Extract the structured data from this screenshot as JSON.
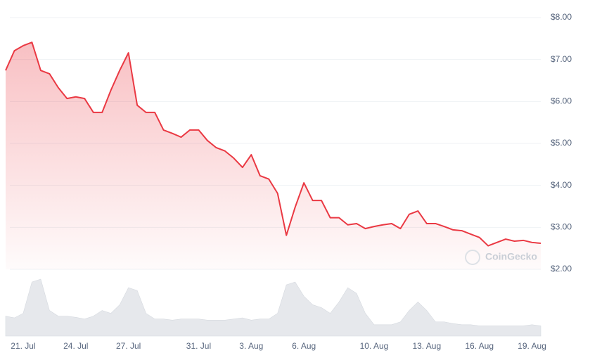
{
  "watermark": "CoinGecko",
  "chart_data": [
    {
      "type": "line",
      "color": "#ea3943",
      "grid": true,
      "categories": [
        null,
        null,
        "21. Jul",
        null,
        null,
        null,
        null,
        null,
        "24. Jul",
        null,
        null,
        null,
        null,
        null,
        "27. Jul",
        null,
        null,
        null,
        null,
        null,
        null,
        null,
        "31. Jul",
        null,
        null,
        null,
        null,
        null,
        "3. Aug",
        null,
        null,
        null,
        null,
        null,
        "6. Aug",
        null,
        null,
        null,
        null,
        null,
        null,
        null,
        "10. Aug",
        null,
        null,
        null,
        null,
        null,
        "13. Aug",
        null,
        null,
        null,
        null,
        null,
        "16. Aug",
        null,
        null,
        null,
        null,
        null,
        "19. Aug",
        null
      ],
      "values": [
        6.74,
        7.21,
        7.33,
        7.41,
        6.74,
        6.66,
        6.33,
        6.07,
        6.11,
        6.07,
        5.74,
        5.74,
        6.27,
        6.74,
        7.16,
        5.91,
        5.74,
        5.74,
        5.32,
        5.24,
        5.15,
        5.32,
        5.32,
        5.07,
        4.9,
        4.82,
        4.65,
        4.43,
        4.73,
        4.23,
        4.15,
        3.81,
        2.81,
        3.48,
        4.06,
        3.64,
        3.64,
        3.23,
        3.23,
        3.06,
        3.09,
        2.97,
        3.02,
        3.06,
        3.09,
        2.97,
        3.31,
        3.39,
        3.09,
        3.09,
        3.02,
        2.94,
        2.92,
        2.84,
        2.76,
        2.56,
        2.64,
        2.72,
        2.67,
        2.69,
        2.64,
        2.62
      ],
      "ylim": [
        2,
        8
      ],
      "yticks": [
        {
          "value": 2,
          "label": "$2.00"
        },
        {
          "value": 3,
          "label": "$3.00"
        },
        {
          "value": 4,
          "label": "$4.00"
        },
        {
          "value": 5,
          "label": "$5.00"
        },
        {
          "value": 6,
          "label": "$6.00"
        },
        {
          "value": 7,
          "label": "$7.00"
        },
        {
          "value": 8,
          "label": "$8.00"
        }
      ]
    },
    {
      "type": "area",
      "color": "#e6e8ec",
      "values": [
        35,
        32,
        40,
        95,
        100,
        45,
        35,
        35,
        33,
        30,
        35,
        45,
        40,
        55,
        85,
        80,
        40,
        30,
        30,
        28,
        30,
        30,
        30,
        28,
        28,
        28,
        30,
        32,
        28,
        30,
        30,
        40,
        90,
        95,
        70,
        55,
        50,
        40,
        60,
        85,
        75,
        40,
        20,
        20,
        20,
        25,
        45,
        60,
        45,
        25,
        25,
        22,
        20,
        20,
        18,
        18,
        18,
        18,
        18,
        18,
        20,
        18
      ],
      "ylim": [
        0,
        100
      ]
    }
  ]
}
